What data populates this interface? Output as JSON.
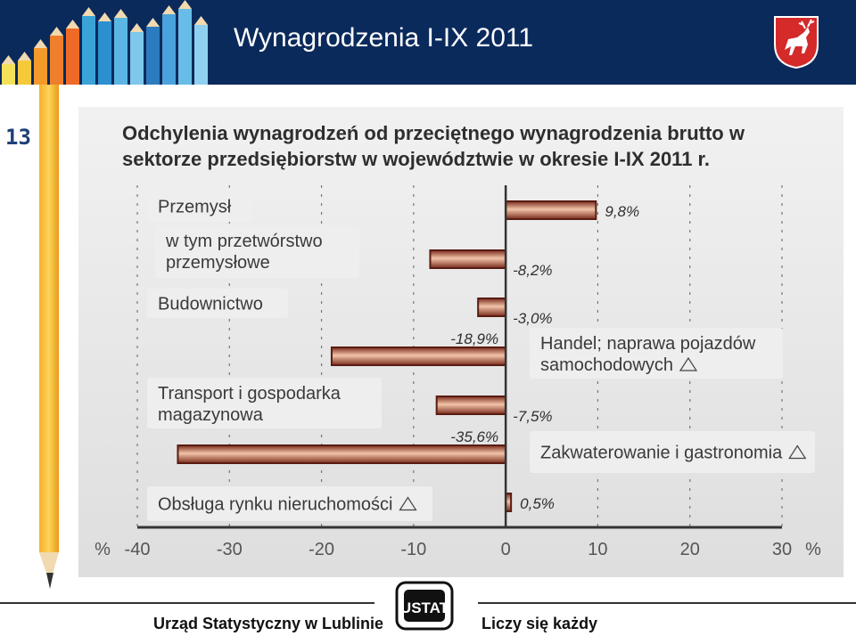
{
  "slide": {
    "title": "Wynagrodzenia I-IX 2011",
    "page_number": "13"
  },
  "footer": {
    "left_text": "Urząd Statystyczny w Lublinie",
    "right_text": "Liczy się każdy",
    "logo_text": "USTAT"
  },
  "icons": {
    "header_decoration": "colored-pencils-icon",
    "coat_of_arms": "deer-coat-of-arms-icon",
    "side_decoration": "pencil-icon",
    "office_logo": "ustat-logo-icon"
  },
  "colors": {
    "header_bg": "#0b2a5c",
    "bar_dark": "#7a2b1d",
    "bar_light": "#f2c4a8",
    "label_box": "#eeeeee",
    "label_text": "#3a3a3a"
  },
  "chart_data": {
    "type": "bar",
    "orientation": "horizontal",
    "title": "Odchylenia wynagrodzeń od przeciętnego wynagrodzenia brutto w sektorze przedsiębiorstw w województwie w okresie I-IX 2011 r.",
    "unit_label_left": "%",
    "unit_label_right": "%",
    "xlim": [
      -40,
      30
    ],
    "xticks": [
      -40,
      -30,
      -20,
      -10,
      0,
      10,
      20,
      30
    ],
    "xtick_labels": [
      "-40",
      "-30",
      "-20",
      "-10",
      "0",
      "10",
      "20",
      "30"
    ],
    "grid": "vertical dashed",
    "categories": [
      {
        "label": [
          "Przemysł"
        ],
        "marker": false
      },
      {
        "label": [
          "w tym przetwórstwo",
          "przemysłowe"
        ],
        "marker": false
      },
      {
        "label": [
          "Budownictwo"
        ],
        "marker": false
      },
      {
        "label": [
          "Handel; naprawa pojazdów",
          "samochodowych"
        ],
        "marker": true
      },
      {
        "label": [
          "Transport i gospodarka",
          "magazynowa"
        ],
        "marker": false
      },
      {
        "label": [
          "Zakwaterowanie i gastronomia"
        ],
        "marker": true
      },
      {
        "label": [
          "Obsługa rynku nieruchomości"
        ],
        "marker": true
      }
    ],
    "values": [
      9.8,
      -8.2,
      -3.0,
      -18.9,
      -7.5,
      -35.6,
      0.5
    ],
    "value_labels": [
      "9,8%",
      "-8,2%",
      "-3,0%",
      "-18,9%",
      "-7,5%",
      "-35,6%",
      "0,5%"
    ]
  }
}
